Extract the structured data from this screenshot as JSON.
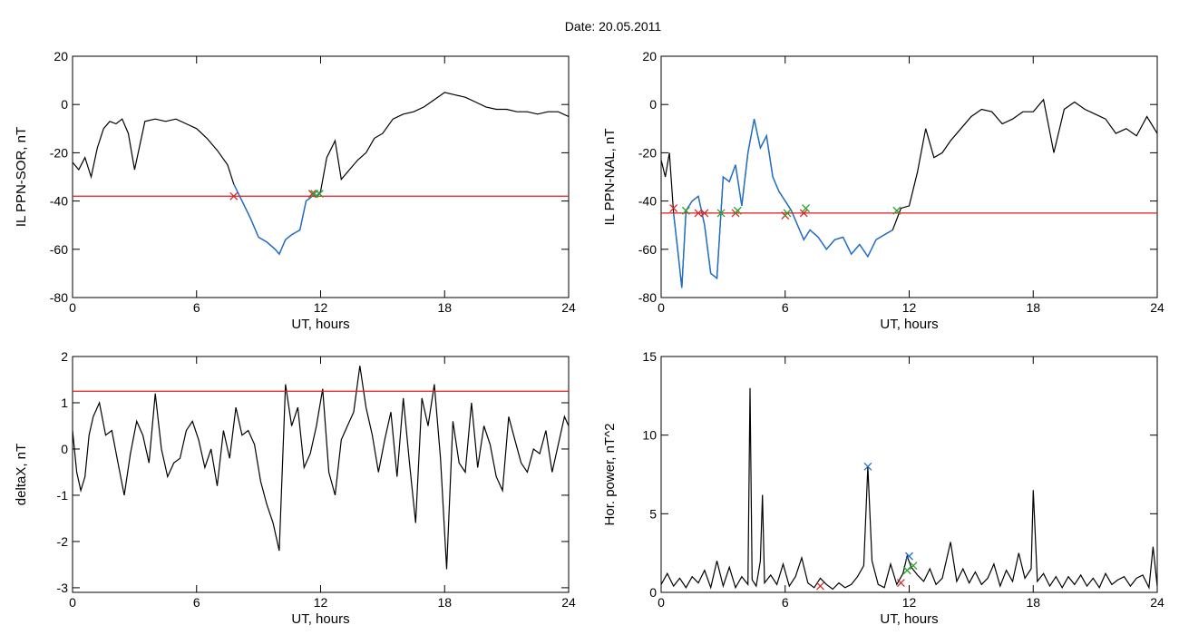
{
  "figure": {
    "title": "Date:  20.05.2011"
  },
  "colors": {
    "trace": "#000000",
    "threshold": "#e41a1c",
    "highlight": "#1f6fcf",
    "marker_red": "#d62728",
    "marker_green": "#2ca02c",
    "marker_blue": "#1f6fcf"
  },
  "chart_data": [
    {
      "id": "sor",
      "type": "line",
      "xlabel": "UT, hours",
      "ylabel": "IL PPN-SOR, nT",
      "xlim": [
        0,
        24
      ],
      "ylim": [
        -80,
        20
      ],
      "xticks": [
        0,
        6,
        12,
        18,
        24
      ],
      "yticks": [
        -80,
        -60,
        -40,
        -20,
        0,
        20
      ],
      "grid": false,
      "threshold": -38,
      "series": [
        {
          "x": [
            0,
            0.3,
            0.6,
            0.9,
            1.2,
            1.5,
            1.8,
            2.1,
            2.4,
            2.7,
            3.0,
            3.5,
            4.0,
            4.5,
            5.0,
            5.5,
            6.0,
            6.5,
            7.0,
            7.5,
            7.8,
            8.2,
            8.6,
            9.0,
            9.4,
            9.8,
            10.0,
            10.3,
            10.6,
            11.0,
            11.3,
            11.6,
            11.8,
            12.0,
            12.3,
            12.7,
            13.0,
            13.4,
            13.8,
            14.2,
            14.6,
            15.0,
            15.5,
            16.0,
            16.5,
            17.0,
            17.5,
            18.0,
            18.5,
            19.0,
            19.5,
            20.0,
            20.5,
            21.0,
            21.5,
            22.0,
            22.5,
            23.0,
            23.5,
            24.0
          ],
          "y": [
            -24,
            -27,
            -22,
            -30,
            -18,
            -10,
            -7,
            -8,
            -6,
            -12,
            -27,
            -7,
            -6,
            -7,
            -6,
            -8,
            -10,
            -14,
            -19,
            -25,
            -33,
            -40,
            -47,
            -55,
            -57,
            -60,
            -62,
            -56,
            -54,
            -52,
            -40,
            -38,
            -38,
            -36,
            -22,
            -15,
            -31,
            -27,
            -23,
            -20,
            -14,
            -12,
            -6,
            -4,
            -3,
            -1,
            2,
            5,
            4,
            3,
            1,
            -1,
            -2,
            -2,
            -3,
            -3,
            -4,
            -3,
            -3,
            -5
          ]
        }
      ],
      "highlight_range": [
        7.8,
        12.0
      ],
      "markers": [
        {
          "x": 7.8,
          "y": -38,
          "color": "red"
        },
        {
          "x": 11.6,
          "y": -37,
          "color": "red"
        },
        {
          "x": 11.7,
          "y": -37,
          "color": "green"
        },
        {
          "x": 11.95,
          "y": -37,
          "color": "green"
        }
      ]
    },
    {
      "id": "nal",
      "type": "line",
      "xlabel": "UT, hours",
      "ylabel": "IL PPN-NAL, nT",
      "xlim": [
        0,
        24
      ],
      "ylim": [
        -80,
        20
      ],
      "xticks": [
        0,
        6,
        12,
        18,
        24
      ],
      "yticks": [
        -80,
        -60,
        -40,
        -20,
        0,
        20
      ],
      "grid": false,
      "threshold": -45,
      "series": [
        {
          "x": [
            0,
            0.2,
            0.4,
            0.6,
            0.8,
            1.0,
            1.2,
            1.5,
            1.8,
            2.1,
            2.4,
            2.7,
            3.0,
            3.3,
            3.6,
            3.9,
            4.2,
            4.5,
            4.8,
            5.1,
            5.4,
            5.7,
            6.0,
            6.3,
            6.6,
            6.9,
            7.2,
            7.6,
            8.0,
            8.4,
            8.8,
            9.2,
            9.6,
            10.0,
            10.4,
            10.8,
            11.2,
            11.6,
            12.0,
            12.4,
            12.8,
            13.2,
            13.6,
            14.0,
            14.5,
            15.0,
            15.5,
            16.0,
            16.5,
            17.0,
            17.5,
            18.0,
            18.5,
            19.0,
            19.5,
            20.0,
            20.5,
            21.0,
            21.5,
            22.0,
            22.5,
            23.0,
            23.5,
            24.0
          ],
          "y": [
            -23,
            -30,
            -20,
            -45,
            -60,
            -76,
            -44,
            -40,
            -38,
            -50,
            -70,
            -72,
            -30,
            -32,
            -25,
            -42,
            -20,
            -6,
            -18,
            -13,
            -30,
            -36,
            -40,
            -44,
            -50,
            -56,
            -52,
            -55,
            -60,
            -56,
            -55,
            -62,
            -58,
            -63,
            -56,
            -54,
            -52,
            -43,
            -42,
            -28,
            -10,
            -22,
            -20,
            -15,
            -10,
            -5,
            -2,
            -3,
            -8,
            -6,
            -3,
            -3,
            2,
            -20,
            -2,
            1,
            -2,
            -4,
            -6,
            -12,
            -10,
            -13,
            -5,
            -12
          ]
        }
      ],
      "highlight_range": [
        0.6,
        11.4
      ],
      "markers": [
        {
          "x": 0.6,
          "y": -43,
          "color": "red"
        },
        {
          "x": 1.2,
          "y": -44,
          "color": "green"
        },
        {
          "x": 1.8,
          "y": -45,
          "color": "red"
        },
        {
          "x": 2.1,
          "y": -45,
          "color": "red"
        },
        {
          "x": 2.9,
          "y": -45,
          "color": "green"
        },
        {
          "x": 3.6,
          "y": -45,
          "color": "red"
        },
        {
          "x": 3.7,
          "y": -44,
          "color": "green"
        },
        {
          "x": 6.0,
          "y": -46,
          "color": "red"
        },
        {
          "x": 6.1,
          "y": -45,
          "color": "green"
        },
        {
          "x": 6.9,
          "y": -45,
          "color": "red"
        },
        {
          "x": 7.0,
          "y": -43,
          "color": "green"
        },
        {
          "x": 11.4,
          "y": -44,
          "color": "green"
        }
      ]
    },
    {
      "id": "deltax",
      "type": "line",
      "xlabel": "UT, hours",
      "ylabel": "deltaX, nT",
      "xlim": [
        0,
        24
      ],
      "ylim": [
        -3.1,
        2
      ],
      "xticks": [
        0,
        6,
        12,
        18,
        24
      ],
      "yticks": [
        -3,
        -2,
        -1,
        0,
        1,
        2
      ],
      "grid": false,
      "threshold": 1.25,
      "series": [
        {
          "x": [
            0,
            0.2,
            0.4,
            0.6,
            0.8,
            1.0,
            1.3,
            1.6,
            1.9,
            2.2,
            2.5,
            2.8,
            3.1,
            3.4,
            3.7,
            4.0,
            4.3,
            4.6,
            4.9,
            5.2,
            5.5,
            5.8,
            6.1,
            6.4,
            6.7,
            7.0,
            7.3,
            7.6,
            7.9,
            8.2,
            8.5,
            8.8,
            9.1,
            9.4,
            9.7,
            10.0,
            10.3,
            10.6,
            10.9,
            11.2,
            11.5,
            11.8,
            12.1,
            12.4,
            12.7,
            13.0,
            13.3,
            13.6,
            13.9,
            14.2,
            14.5,
            14.8,
            15.1,
            15.4,
            15.7,
            16.0,
            16.3,
            16.6,
            16.9,
            17.2,
            17.5,
            17.8,
            18.1,
            18.4,
            18.7,
            19.0,
            19.3,
            19.6,
            19.9,
            20.2,
            20.5,
            20.8,
            21.1,
            21.4,
            21.7,
            22.0,
            22.3,
            22.6,
            22.9,
            23.2,
            23.5,
            23.8,
            24.0
          ],
          "y": [
            0.4,
            -0.5,
            -0.9,
            -0.6,
            0.3,
            0.7,
            1.0,
            0.3,
            0.4,
            -0.3,
            -1.0,
            -0.1,
            0.6,
            0.3,
            -0.3,
            1.2,
            0.0,
            -0.6,
            -0.3,
            -0.2,
            0.4,
            0.6,
            0.2,
            -0.4,
            0.0,
            -0.8,
            0.4,
            -0.2,
            0.9,
            0.3,
            0.4,
            0.1,
            -0.7,
            -1.2,
            -1.6,
            -2.2,
            1.4,
            0.5,
            0.9,
            -0.4,
            -0.1,
            0.5,
            1.3,
            -0.5,
            -1.0,
            0.2,
            0.5,
            0.8,
            1.8,
            0.9,
            0.3,
            -0.5,
            0.2,
            0.8,
            -0.6,
            1.1,
            -0.3,
            -1.6,
            1.1,
            0.5,
            1.4,
            -0.2,
            -2.6,
            0.6,
            -0.3,
            -0.5,
            1.0,
            -0.4,
            0.5,
            0.1,
            -0.6,
            -0.9,
            0.7,
            0.2,
            -0.3,
            -0.5,
            0.0,
            -0.1,
            0.4,
            -0.5,
            0.1,
            0.7,
            0.5
          ]
        }
      ],
      "markers": []
    },
    {
      "id": "power",
      "type": "line",
      "xlabel": "UT, hours",
      "ylabel": "Hor. power, nT^2",
      "xlim": [
        0,
        24
      ],
      "ylim": [
        0,
        15
      ],
      "xticks": [
        0,
        6,
        12,
        18,
        24
      ],
      "yticks": [
        0,
        5,
        10,
        15
      ],
      "grid": false,
      "series": [
        {
          "x": [
            0,
            0.3,
            0.6,
            0.9,
            1.2,
            1.5,
            1.8,
            2.1,
            2.4,
            2.7,
            3.0,
            3.3,
            3.6,
            3.9,
            4.2,
            4.3,
            4.4,
            4.6,
            4.8,
            4.9,
            5.0,
            5.3,
            5.6,
            5.9,
            6.2,
            6.5,
            6.8,
            7.1,
            7.4,
            7.7,
            8.0,
            8.3,
            8.6,
            8.9,
            9.2,
            9.5,
            9.8,
            10.0,
            10.2,
            10.5,
            10.8,
            11.1,
            11.4,
            11.7,
            11.9,
            12.1,
            12.4,
            12.7,
            13.0,
            13.3,
            13.6,
            14.0,
            14.3,
            14.6,
            14.9,
            15.2,
            15.5,
            15.8,
            16.1,
            16.4,
            16.7,
            17.0,
            17.3,
            17.6,
            17.9,
            18.0,
            18.2,
            18.5,
            18.8,
            19.1,
            19.4,
            19.7,
            20.0,
            20.3,
            20.6,
            20.9,
            21.2,
            21.5,
            21.8,
            22.1,
            22.4,
            22.7,
            23.0,
            23.3,
            23.6,
            23.8,
            24.0
          ],
          "y": [
            0.5,
            1.2,
            0.4,
            0.9,
            0.3,
            1.0,
            0.6,
            1.4,
            0.3,
            2.0,
            0.4,
            1.6,
            0.3,
            1.0,
            0.5,
            13.0,
            0.8,
            0.4,
            2.0,
            6.2,
            0.6,
            1.1,
            0.5,
            1.8,
            0.4,
            1.0,
            2.2,
            0.6,
            0.3,
            0.9,
            0.5,
            0.2,
            0.6,
            0.3,
            0.5,
            1.0,
            1.7,
            8.0,
            2.0,
            0.5,
            0.3,
            1.8,
            0.5,
            1.2,
            2.3,
            1.6,
            1.1,
            0.7,
            1.5,
            0.5,
            0.9,
            3.2,
            0.7,
            1.5,
            0.6,
            1.3,
            0.5,
            0.9,
            1.8,
            0.4,
            1.4,
            0.7,
            2.5,
            0.9,
            1.5,
            6.5,
            0.7,
            1.2,
            0.4,
            1.0,
            0.3,
            1.0,
            0.5,
            1.1,
            0.4,
            0.9,
            0.3,
            1.2,
            0.5,
            0.8,
            1.0,
            0.4,
            0.9,
            1.1,
            0.3,
            2.9,
            0.4
          ]
        }
      ],
      "markers": [
        {
          "x": 7.7,
          "y": 0.4,
          "color": "red"
        },
        {
          "x": 10.0,
          "y": 8.0,
          "color": "blue"
        },
        {
          "x": 11.6,
          "y": 0.6,
          "color": "red"
        },
        {
          "x": 11.9,
          "y": 1.4,
          "color": "green"
        },
        {
          "x": 12.0,
          "y": 2.3,
          "color": "blue"
        },
        {
          "x": 12.2,
          "y": 1.7,
          "color": "green"
        }
      ]
    }
  ]
}
